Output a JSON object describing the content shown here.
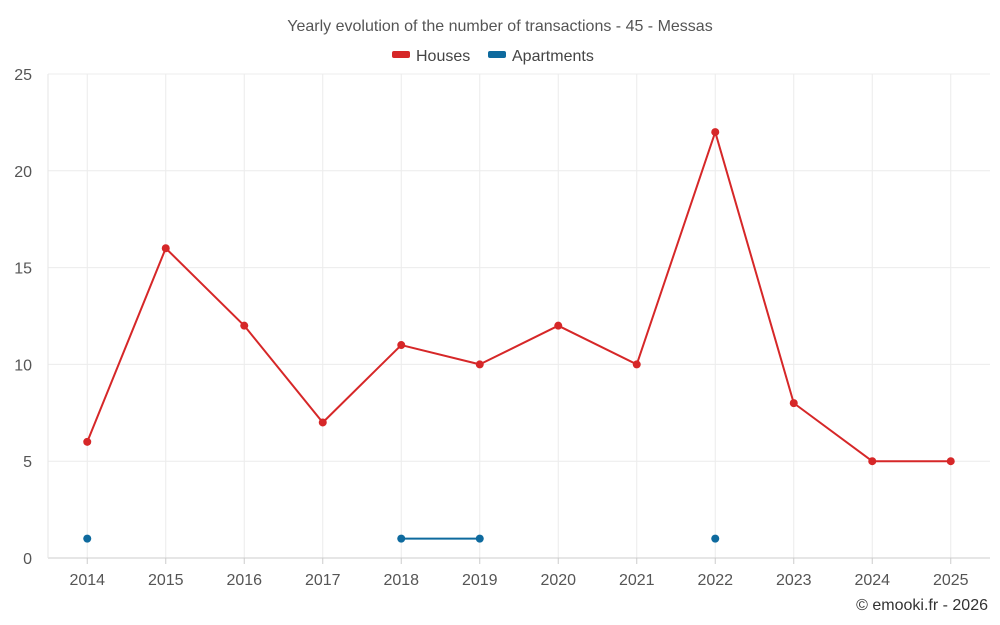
{
  "chart_data": {
    "type": "line",
    "title": "Yearly evolution of the number of transactions - 45 - Messas",
    "categories": [
      "2014",
      "2015",
      "2016",
      "2017",
      "2018",
      "2019",
      "2020",
      "2021",
      "2022",
      "2023",
      "2024",
      "2025"
    ],
    "series": [
      {
        "name": "Houses",
        "color": "#d62728",
        "values": [
          6,
          16,
          12,
          7,
          11,
          10,
          12,
          10,
          22,
          8,
          5,
          5
        ]
      },
      {
        "name": "Apartments",
        "color": "#0e6a9e",
        "values": [
          1,
          null,
          null,
          null,
          1,
          1,
          null,
          null,
          1,
          null,
          null,
          null
        ]
      }
    ],
    "ylim": [
      0,
      25
    ],
    "yticks": [
      "0",
      "5",
      "10",
      "15",
      "20",
      "25"
    ],
    "xlabel": "",
    "ylabel": "",
    "grid": true,
    "legend_position": "top-center"
  },
  "credit": "© emooki.fr - 2026"
}
